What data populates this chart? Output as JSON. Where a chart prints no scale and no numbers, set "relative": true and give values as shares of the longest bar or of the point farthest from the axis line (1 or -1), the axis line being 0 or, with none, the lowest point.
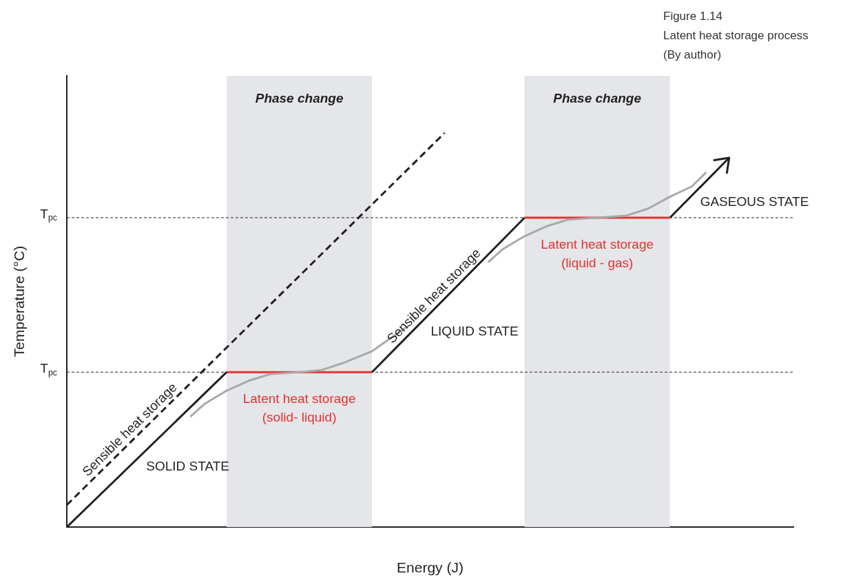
{
  "chart_data": {
    "type": "line",
    "title": "Figure 1.14",
    "subtitle": "Latent heat storage process",
    "xlabel": "Energy (J)",
    "ylabel": "Temperature (°C)",
    "relative": true,
    "tick_labels": false,
    "grid": false,
    "legend": false,
    "marker": "none",
    "categories": [
      null,
      null,
      null,
      null,
      null,
      null,
      null,
      null,
      null,
      null,
      null,
      null,
      null,
      null,
      null,
      null,
      null,
      null,
      null,
      null,
      null,
      null,
      null,
      null,
      null,
      null,
      null,
      null,
      null,
      null,
      null,
      null,
      null,
      null,
      null,
      null,
      null,
      null,
      null,
      null,
      null,
      null,
      null,
      null,
      null,
      null,
      null,
      null,
      null,
      null,
      null,
      null,
      null,
      null,
      null,
      null,
      null,
      null,
      null,
      null,
      null,
      null,
      null,
      null,
      null,
      null,
      null,
      null,
      null,
      null,
      null,
      null,
      null,
      null,
      null,
      null,
      null,
      null,
      null,
      null,
      null,
      null,
      null,
      null,
      null,
      null,
      null,
      null,
      null,
      null,
      null,
      null,
      null,
      null,
      null,
      null,
      null,
      null,
      null,
      null,
      null
    ],
    "series": [
      {
        "name": "SOLID STATE",
        "color": "#231f20",
        "values": [
          0,
          null,
          null,
          null,
          null,
          null,
          null,
          null,
          null,
          null,
          null,
          null,
          null,
          null,
          null,
          null,
          null,
          null,
          null,
          null,
          null,
          null,
          0.393,
          null,
          null,
          null,
          null,
          null,
          null,
          null,
          null,
          null,
          null,
          null,
          null,
          null,
          null,
          null,
          null,
          null,
          null,
          null,
          null,
          null,
          null,
          null,
          null,
          null,
          null,
          null,
          null,
          null,
          null,
          null,
          null,
          null,
          null,
          null,
          null,
          null,
          null,
          null,
          null,
          null,
          null,
          null,
          null,
          null,
          null,
          null,
          null,
          null,
          null,
          null,
          null,
          null,
          null,
          null,
          null,
          null,
          null,
          null,
          null,
          null,
          null,
          null,
          null,
          null,
          null,
          null,
          null,
          null,
          null,
          null,
          null,
          null,
          null,
          null,
          null,
          null,
          null
        ]
      },
      {
        "name": "Sensible heat storage",
        "color": "#231f20",
        "line_style": "dashed",
        "values": [
          0.056,
          null,
          null,
          null,
          null,
          null,
          null,
          null,
          null,
          null,
          null,
          null,
          null,
          null,
          null,
          null,
          null,
          null,
          null,
          null,
          null,
          null,
          null,
          null,
          null,
          null,
          null,
          null,
          null,
          null,
          null,
          null,
          null,
          null,
          null,
          null,
          null,
          null,
          null,
          null,
          null,
          null,
          null,
          null,
          null,
          null,
          null,
          null,
          null,
          null,
          null,
          null,
          1,
          null,
          null,
          null,
          null,
          null,
          null,
          null,
          null,
          null,
          null,
          null,
          null,
          null,
          null,
          null,
          null,
          null,
          null,
          null,
          null,
          null,
          null,
          null,
          null,
          null,
          null,
          null,
          null,
          null,
          null,
          null,
          null,
          null,
          null,
          null,
          null,
          null,
          null,
          null,
          null,
          null,
          null,
          null,
          null,
          null,
          null,
          null,
          null
        ]
      },
      {
        "name": "Sensible heat storage",
        "color": "#231f20",
        "values": [
          null,
          null,
          null,
          null,
          null,
          null,
          null,
          null,
          null,
          null,
          null,
          null,
          null,
          null,
          null,
          null,
          null,
          null,
          null,
          null,
          null,
          null,
          null,
          null,
          null,
          null,
          null,
          null,
          null,
          null,
          null,
          null,
          null,
          null,
          null,
          null,
          null,
          null,
          null,
          null,
          null,
          null,
          0.393,
          null,
          null,
          null,
          null,
          null,
          null,
          null,
          null,
          null,
          null,
          null,
          null,
          null,
          null,
          null,
          null,
          null,
          null,
          null,
          null,
          0.785,
          null,
          null,
          null,
          null,
          null,
          null,
          null,
          null,
          null,
          null,
          null,
          null,
          null,
          null,
          null,
          null,
          null,
          null,
          null,
          null,
          null,
          null,
          null,
          null,
          null,
          null,
          null,
          null,
          null,
          null,
          null,
          null,
          null,
          null,
          null,
          null,
          null
        ]
      },
      {
        "color": "#a7a9ac",
        "values": [
          null,
          null,
          null,
          null,
          null,
          null,
          null,
          null,
          null,
          null,
          null,
          null,
          null,
          null,
          null,
          null,
          null,
          0.28,
          null,
          0.313,
          null,
          null,
          0.346,
          null,
          null,
          0.371,
          null,
          null,
          0.388,
          null,
          null,
          null,
          0.393,
          null,
          null,
          0.398,
          null,
          null,
          0.416,
          null,
          null,
          null,
          0.446,
          null,
          0.472,
          null,
          null,
          0.51,
          null,
          null,
          null,
          null,
          null,
          null,
          null,
          null,
          null,
          null,
          null,
          null,
          null,
          null,
          null,
          null,
          null,
          null,
          null,
          null,
          null,
          null,
          null,
          null,
          null,
          null,
          null,
          null,
          null,
          null,
          null,
          null,
          null,
          null,
          null,
          null,
          null,
          null,
          null,
          null,
          null,
          null,
          null,
          null,
          null,
          null,
          null,
          null,
          null,
          null,
          null,
          null,
          null
        ]
      },
      {
        "color": "#a7a9ac",
        "values": [
          null,
          null,
          null,
          null,
          null,
          null,
          null,
          null,
          null,
          null,
          null,
          null,
          null,
          null,
          null,
          null,
          null,
          null,
          null,
          null,
          null,
          null,
          null,
          null,
          null,
          null,
          null,
          null,
          null,
          null,
          null,
          null,
          null,
          null,
          null,
          null,
          null,
          null,
          null,
          null,
          null,
          null,
          null,
          null,
          null,
          null,
          null,
          null,
          null,
          null,
          null,
          null,
          null,
          null,
          null,
          null,
          null,
          null,
          0.672,
          null,
          0.705,
          null,
          null,
          0.738,
          null,
          null,
          0.763,
          null,
          null,
          0.78,
          null,
          null,
          null,
          0.785,
          null,
          null,
          null,
          0.79,
          null,
          null,
          0.808,
          null,
          null,
          0.838,
          null,
          null,
          0.864,
          null,
          0.9,
          null,
          null,
          null,
          null,
          null,
          null,
          null,
          null,
          null,
          null,
          null,
          null
        ]
      },
      {
        "name": "Latent heat storage\n(solid- liquid)",
        "color": "#e8312f",
        "values": [
          null,
          null,
          null,
          null,
          null,
          null,
          null,
          null,
          null,
          null,
          null,
          null,
          null,
          null,
          null,
          null,
          null,
          null,
          null,
          null,
          null,
          null,
          0.393,
          null,
          null,
          null,
          null,
          null,
          null,
          null,
          null,
          null,
          null,
          null,
          null,
          null,
          null,
          null,
          null,
          null,
          null,
          null,
          0.393,
          null,
          null,
          null,
          null,
          null,
          null,
          null,
          null,
          null,
          null,
          null,
          null,
          null,
          null,
          null,
          null,
          null,
          null,
          null,
          null,
          null,
          null,
          null,
          null,
          null,
          null,
          null,
          null,
          null,
          null,
          null,
          null,
          null,
          null,
          null,
          null,
          null,
          null,
          null,
          null,
          null,
          null,
          null,
          null,
          null,
          null,
          null,
          null,
          null,
          null,
          null,
          null,
          null,
          null,
          null,
          null,
          null,
          null
        ]
      },
      {
        "name": "Latent heat storage\n(liquid - gas)",
        "color": "#e8312f",
        "values": [
          null,
          null,
          null,
          null,
          null,
          null,
          null,
          null,
          null,
          null,
          null,
          null,
          null,
          null,
          null,
          null,
          null,
          null,
          null,
          null,
          null,
          null,
          null,
          null,
          null,
          null,
          null,
          null,
          null,
          null,
          null,
          null,
          null,
          null,
          null,
          null,
          null,
          null,
          null,
          null,
          null,
          null,
          null,
          null,
          null,
          null,
          null,
          null,
          null,
          null,
          null,
          null,
          null,
          null,
          null,
          null,
          null,
          null,
          null,
          null,
          null,
          null,
          null,
          0.785,
          null,
          null,
          null,
          null,
          null,
          null,
          null,
          null,
          null,
          null,
          null,
          null,
          null,
          null,
          null,
          null,
          null,
          null,
          null,
          0.785,
          null,
          null,
          null,
          null,
          null,
          null,
          null,
          null,
          null,
          null,
          null,
          null,
          null,
          null,
          null,
          null,
          null
        ]
      }
    ],
    "ref_lines": [
      {
        "axis": "y",
        "value": 0.393,
        "label": "T$_{pc}$",
        "line_style": "dashed"
      },
      {
        "axis": "y",
        "value": 0.785,
        "label": "T$_{pc}$",
        "line_style": "dashed"
      }
    ],
    "annotations": [
      "Phase change",
      "Phase change",
      "LIQUID STATE",
      "GASEOUS STATE",
      "(By author)"
    ]
  }
}
